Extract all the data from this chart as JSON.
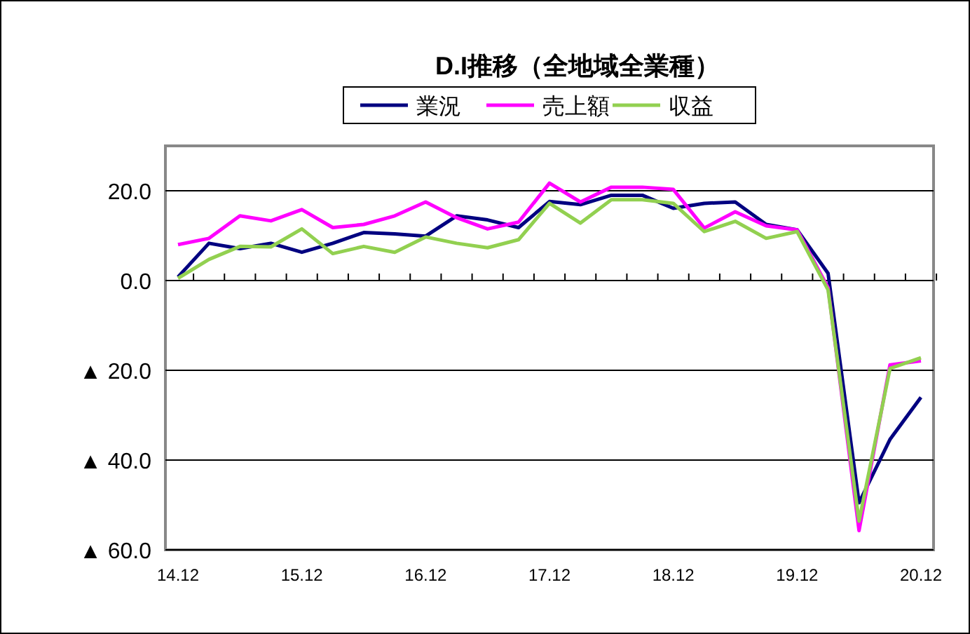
{
  "chart_data": {
    "type": "line",
    "title": "D.I推移（全地域全業種）",
    "categories": [
      "14.12",
      null,
      null,
      null,
      "15.12",
      null,
      null,
      null,
      "16.12",
      null,
      null,
      null,
      "17.12",
      null,
      null,
      null,
      "18.12",
      null,
      null,
      null,
      "19.12",
      null,
      null,
      null,
      "20.12"
    ],
    "series": [
      {
        "name": "業況",
        "color": "#000080",
        "values": [
          0.8,
          8.3,
          7.1,
          8.3,
          6.3,
          8.3,
          10.7,
          10.4,
          9.9,
          14.4,
          13.5,
          11.8,
          17.6,
          16.9,
          19.0,
          19.0,
          16.1,
          17.2,
          17.5,
          12.5,
          11.3,
          1.6,
          -49.5,
          -35.4,
          -26.0
        ]
      },
      {
        "name": "売上額",
        "color": "#ff00ff",
        "values": [
          8.0,
          9.4,
          14.4,
          13.3,
          15.8,
          11.8,
          12.5,
          14.4,
          17.5,
          14.0,
          11.5,
          13.0,
          21.7,
          17.5,
          20.8,
          20.8,
          20.3,
          11.7,
          15.3,
          12.2,
          11.3,
          -1.6,
          -55.7,
          -18.8,
          -17.9
        ]
      },
      {
        "name": "収益",
        "color": "#92d050",
        "values": [
          0.5,
          4.7,
          7.6,
          7.5,
          11.5,
          6.0,
          7.6,
          6.3,
          9.7,
          8.3,
          7.3,
          9.1,
          17.2,
          12.8,
          18.0,
          18.0,
          17.2,
          10.9,
          13.2,
          9.4,
          10.9,
          -2.1,
          -53.6,
          -19.6,
          -17.2
        ]
      }
    ],
    "ylim": [
      -60,
      30
    ],
    "yticks": [
      {
        "value": -60,
        "label": "▲ 60.0"
      },
      {
        "value": -40,
        "label": "▲ 40.0"
      },
      {
        "value": -20,
        "label": "▲ 20.0"
      },
      {
        "value": 0,
        "label": "0.0"
      },
      {
        "value": 20,
        "label": "20.0"
      }
    ],
    "grid": "y",
    "legend": "top",
    "marker": "none",
    "line_style": "solid"
  }
}
